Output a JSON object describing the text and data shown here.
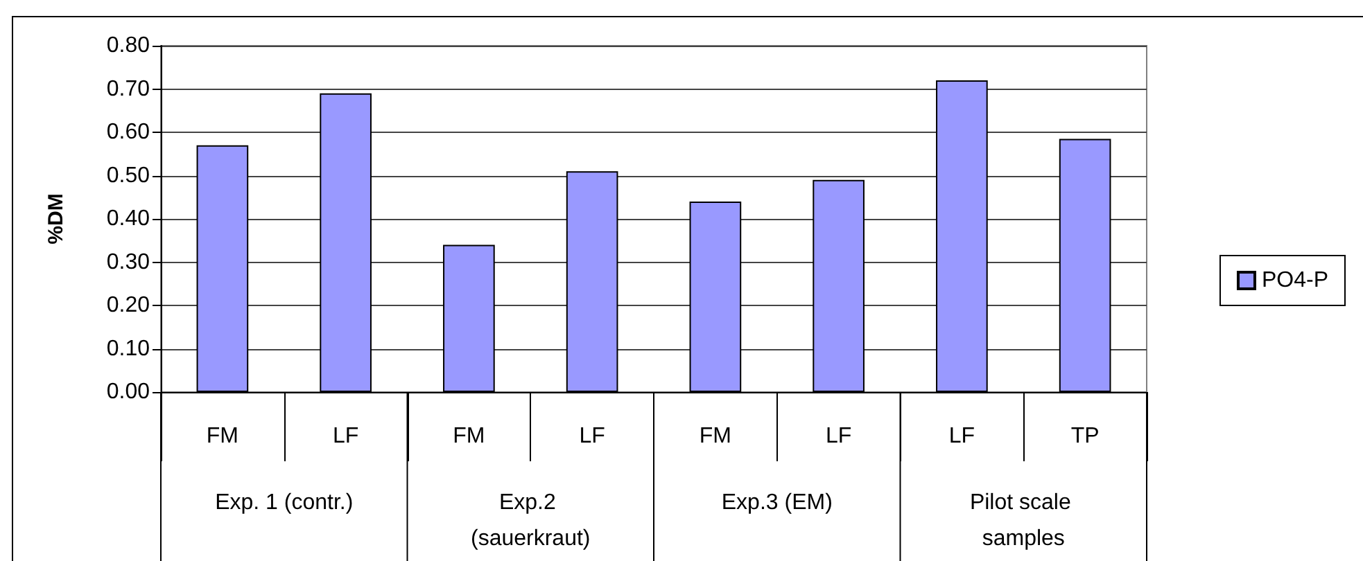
{
  "chart_data": {
    "type": "bar",
    "ylabel": "%DM",
    "categories": [
      "FM",
      "LF",
      "FM",
      "LF",
      "FM",
      "LF",
      "LF",
      "TP"
    ],
    "series": [
      {
        "name": "PO4-P",
        "color": "#9999ff",
        "values": [
          0.57,
          0.69,
          0.34,
          0.51,
          0.44,
          0.49,
          0.72,
          0.585
        ]
      }
    ],
    "annotations": [
      "Exp. 1 (contr.)",
      "Exp.2 (sauerkraut)",
      "Exp.3 (EM)",
      "Pilot scale samples"
    ],
    "ylim": [
      0,
      0.8
    ],
    "yticks": [
      {
        "value": 0,
        "label": "0.00"
      },
      {
        "value": 0.1,
        "label": "0.10"
      },
      {
        "value": 0.2,
        "label": "0.20"
      },
      {
        "value": 0.3,
        "label": "0.30"
      },
      {
        "value": 0.4,
        "label": "0.40"
      },
      {
        "value": 0.5,
        "label": "0.50"
      },
      {
        "value": 0.6,
        "label": "0.60"
      },
      {
        "value": 0.7,
        "label": "0.70"
      },
      {
        "value": 0.8,
        "label": "0.80"
      }
    ],
    "grid": "y",
    "legend": "right"
  }
}
